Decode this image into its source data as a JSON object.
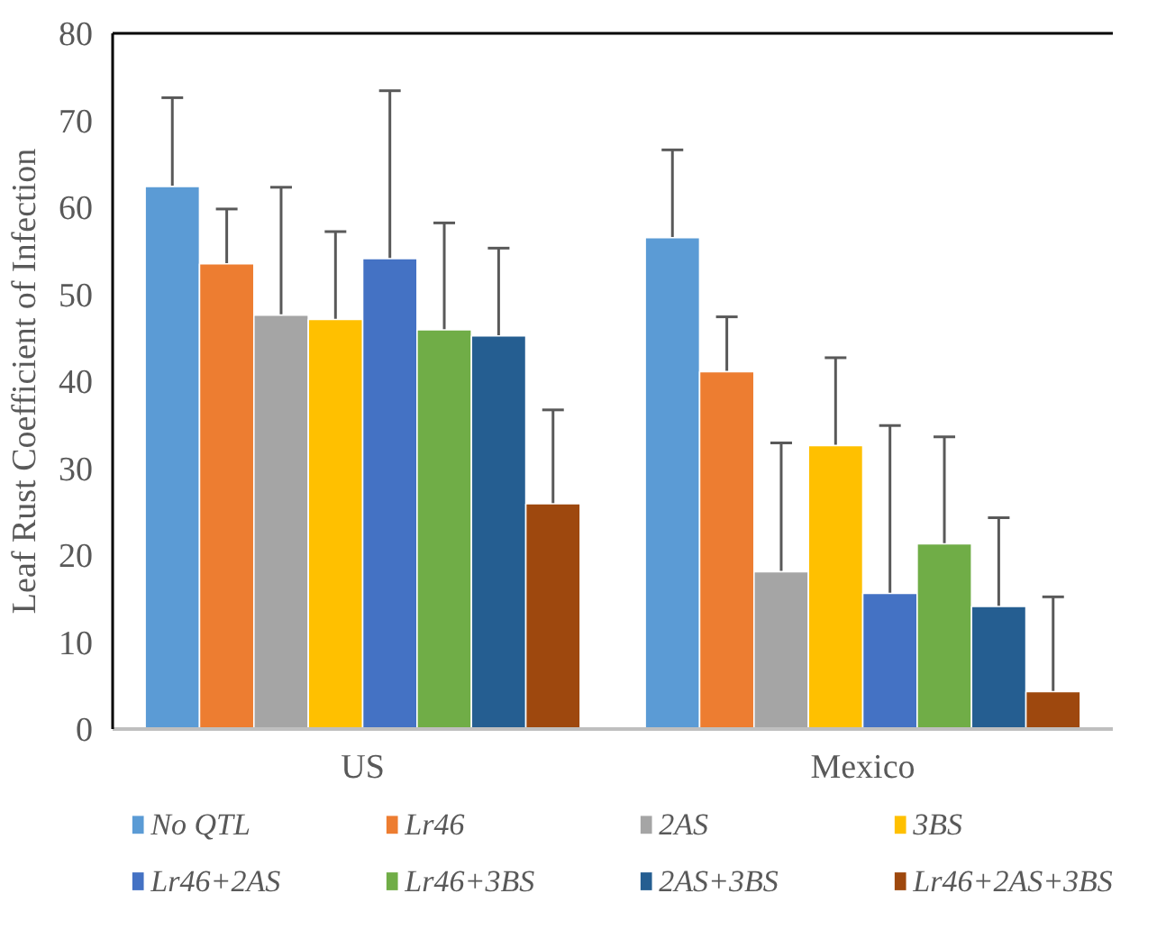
{
  "chart_data": {
    "type": "bar",
    "ylabel": "Leaf Rust Coefficient of Infection",
    "categories": [
      "US",
      "Mexico"
    ],
    "ylim": [
      0,
      80
    ],
    "yticks": [
      0,
      10,
      20,
      30,
      40,
      50,
      60,
      70,
      80
    ],
    "legend": "bottom",
    "series": [
      {
        "name": "No QTL",
        "color": "#5b9bd5",
        "values": [
          62.4,
          56.5
        ],
        "errors": [
          [
            62.4,
            72.6
          ],
          [
            56.5,
            66.6
          ]
        ]
      },
      {
        "name": "Lr46",
        "color": "#ed7d31",
        "values": [
          53.5,
          41.1
        ],
        "errors": [
          [
            53.5,
            59.8
          ],
          [
            41.1,
            47.4
          ]
        ]
      },
      {
        "name": "2AS",
        "color": "#a5a5a5",
        "values": [
          47.6,
          18.1
        ],
        "errors": [
          [
            47.6,
            62.3
          ],
          [
            18.1,
            32.9
          ]
        ]
      },
      {
        "name": "3BS",
        "color": "#ffc000",
        "values": [
          47.1,
          32.6
        ],
        "errors": [
          [
            47.1,
            57.2
          ],
          [
            32.6,
            42.7
          ]
        ]
      },
      {
        "name": "Lr46+2AS",
        "color": "#4472c4",
        "values": [
          54.1,
          15.6
        ],
        "errors": [
          [
            54.1,
            73.4
          ],
          [
            15.6,
            34.9
          ]
        ]
      },
      {
        "name": "Lr46+3BS",
        "color": "#70ad47",
        "values": [
          45.9,
          21.3
        ],
        "errors": [
          [
            45.9,
            58.2
          ],
          [
            21.3,
            33.6
          ]
        ]
      },
      {
        "name": "2AS+3BS",
        "color": "#255e91",
        "values": [
          45.2,
          14.1
        ],
        "errors": [
          [
            45.2,
            55.3
          ],
          [
            14.1,
            24.3
          ]
        ]
      },
      {
        "name": "Lr46+2AS+3BS",
        "color": "#9e480e",
        "values": [
          25.9,
          4.3
        ],
        "errors": [
          [
            25.9,
            36.7
          ],
          [
            4.3,
            15.2
          ]
        ]
      }
    ]
  }
}
